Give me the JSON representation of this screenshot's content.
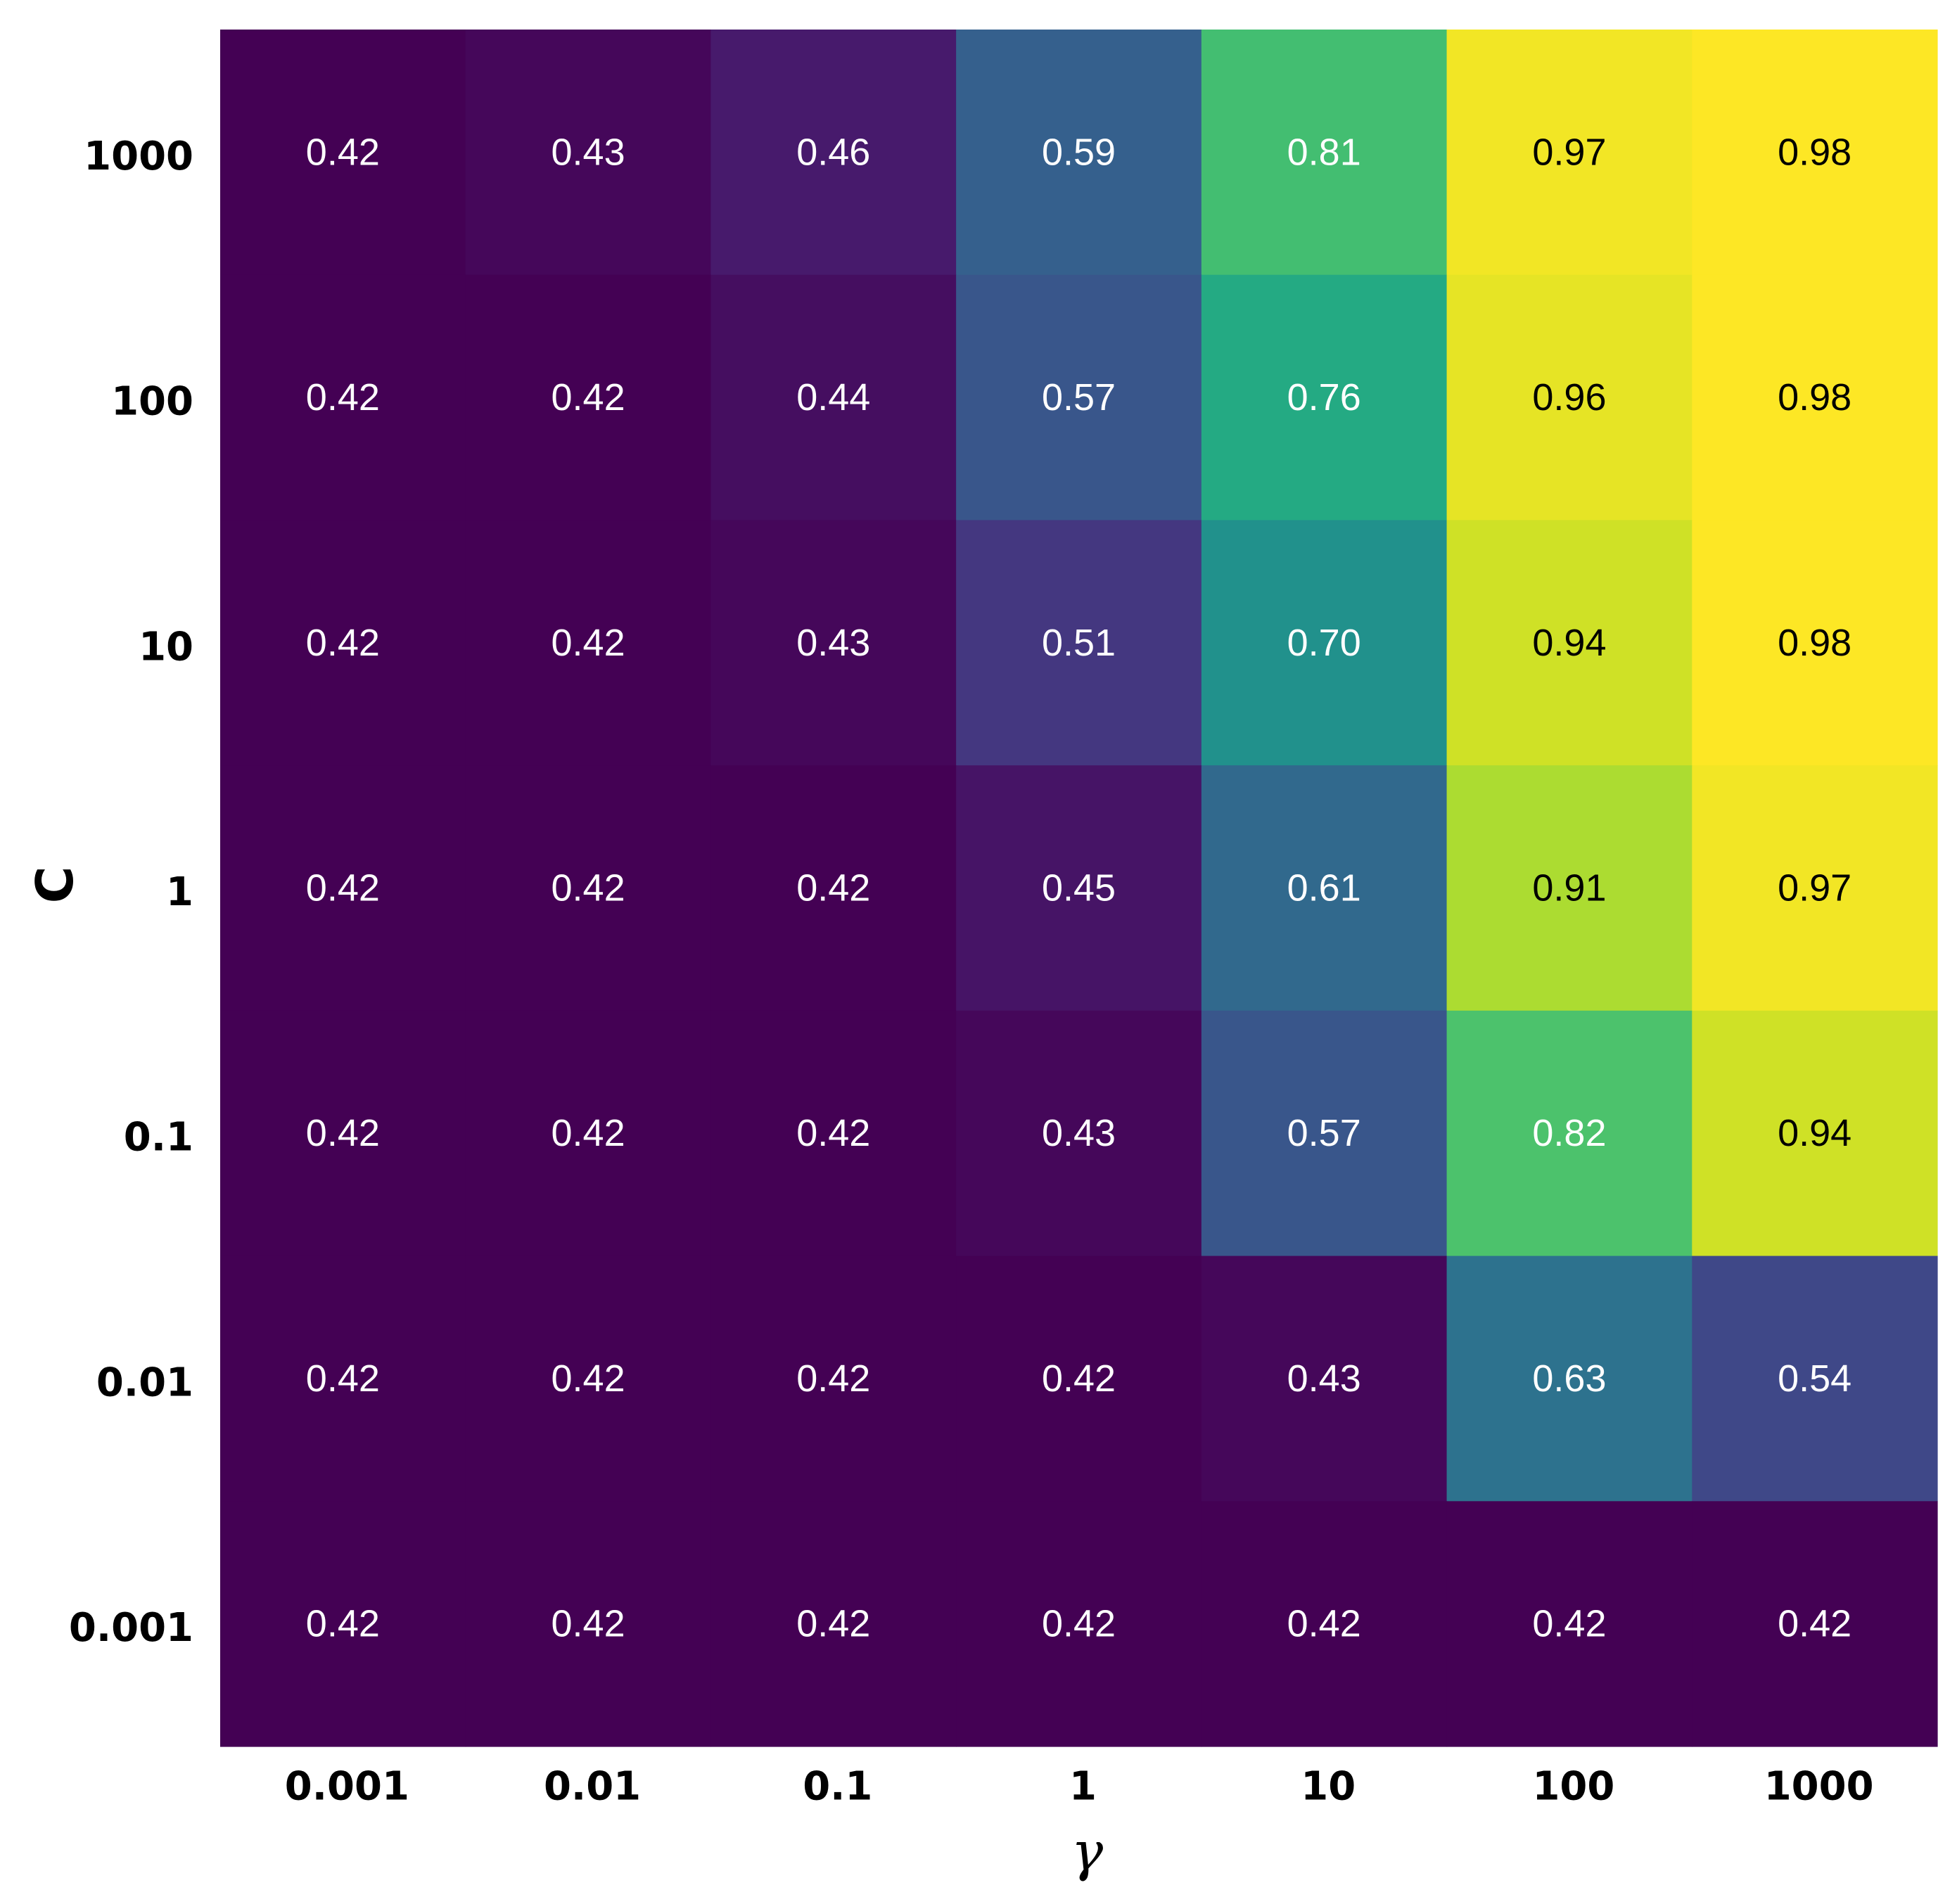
{
  "chart_data": {
    "type": "heatmap",
    "title": "",
    "xlabel": "γ",
    "ylabel": "C",
    "x_categories": [
      "0.001",
      "0.01",
      "0.1",
      "1",
      "10",
      "100",
      "1000"
    ],
    "y_categories": [
      "1000",
      "100",
      "10",
      "1",
      "0.1",
      "0.01",
      "0.001"
    ],
    "values": [
      [
        0.42,
        0.43,
        0.46,
        0.59,
        0.81,
        0.97,
        0.98
      ],
      [
        0.42,
        0.42,
        0.44,
        0.57,
        0.76,
        0.96,
        0.98
      ],
      [
        0.42,
        0.42,
        0.43,
        0.51,
        0.7,
        0.94,
        0.98
      ],
      [
        0.42,
        0.42,
        0.42,
        0.45,
        0.61,
        0.91,
        0.97
      ],
      [
        0.42,
        0.42,
        0.42,
        0.43,
        0.57,
        0.82,
        0.94
      ],
      [
        0.42,
        0.42,
        0.42,
        0.42,
        0.43,
        0.63,
        0.54
      ],
      [
        0.42,
        0.42,
        0.42,
        0.42,
        0.42,
        0.42,
        0.42
      ]
    ],
    "value_format": "2 decimals",
    "colormap": "viridis",
    "color_range": [
      0.42,
      0.98
    ],
    "grid": false,
    "legend": "none"
  }
}
